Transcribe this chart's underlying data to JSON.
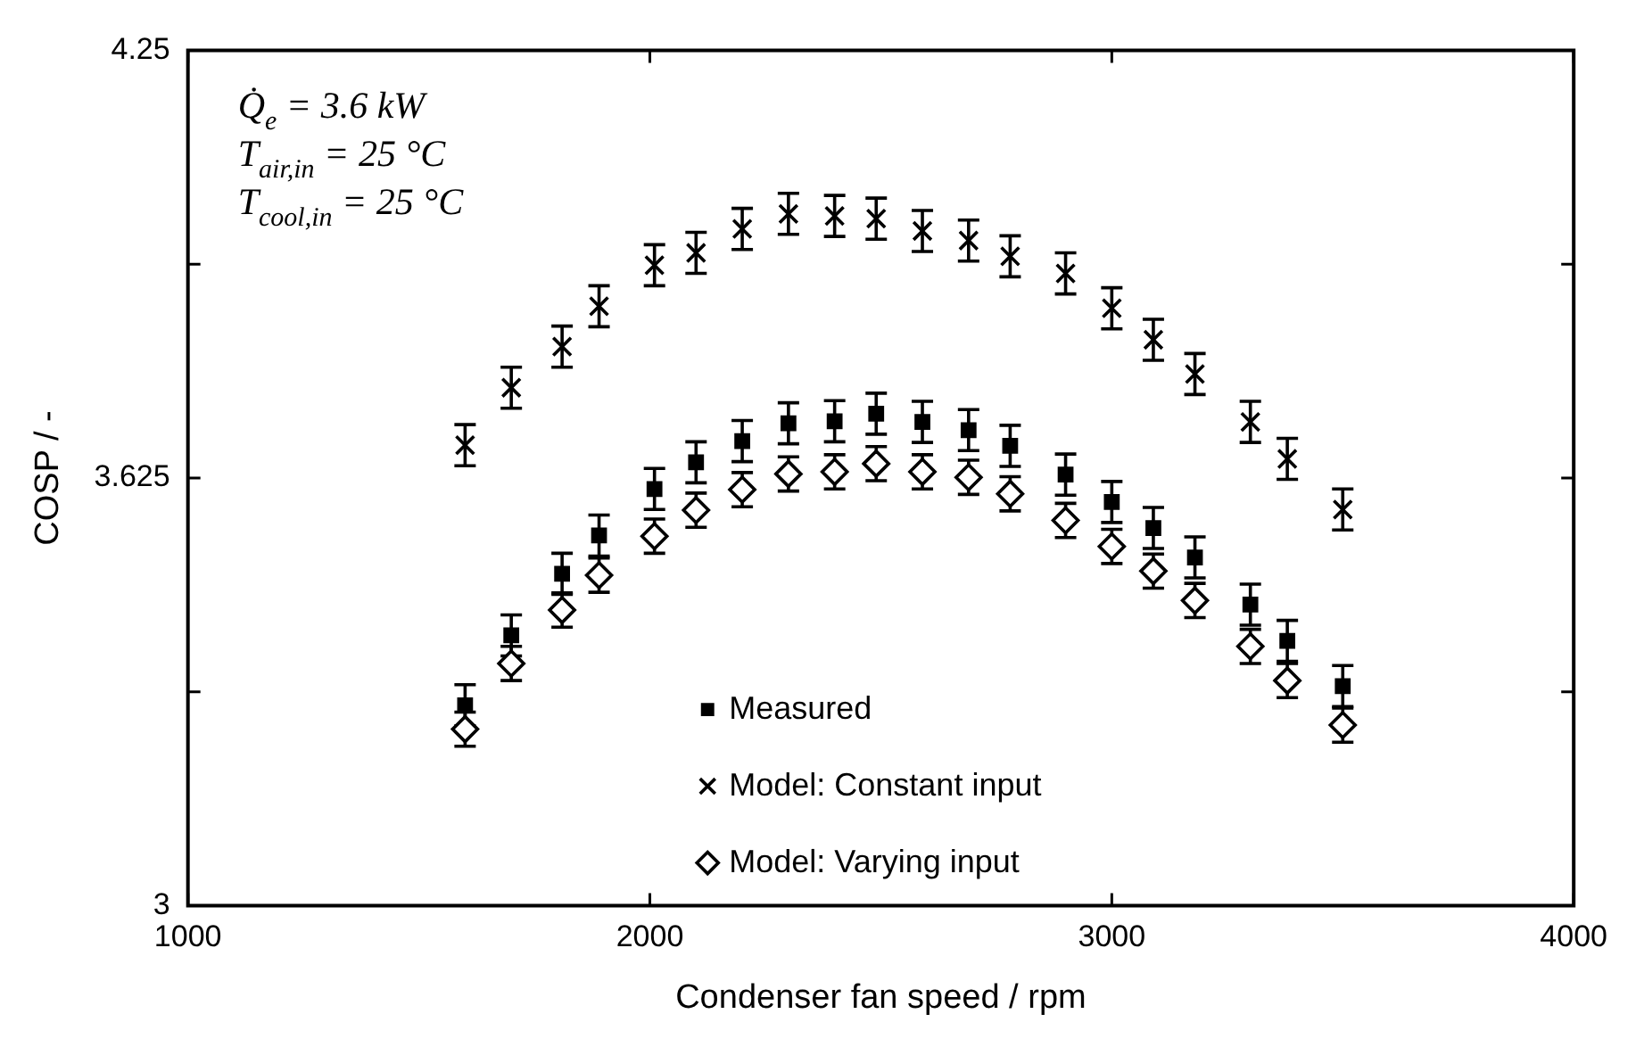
{
  "chart_data": {
    "type": "scatter",
    "xlabel": "Condenser fan speed / rpm",
    "ylabel": "COSP / -",
    "x": [
      1600,
      1700,
      1810,
      1890,
      2010,
      2100,
      2200,
      2300,
      2400,
      2490,
      2590,
      2690,
      2780,
      2900,
      3000,
      3090,
      3180,
      3300,
      3380,
      3500
    ],
    "series": [
      {
        "name": "Measured",
        "color": "#000000",
        "marker": "square",
        "values": [
          3.293,
          3.395,
          3.485,
          3.541,
          3.609,
          3.648,
          3.679,
          3.705,
          3.708,
          3.719,
          3.707,
          3.695,
          3.672,
          3.63,
          3.59,
          3.552,
          3.509,
          3.44,
          3.387,
          3.321
        ],
        "errors": [
          0.03,
          0.03,
          0.03,
          0.03,
          0.03,
          0.03,
          0.03,
          0.03,
          0.03,
          0.03,
          0.03,
          0.03,
          0.03,
          0.03,
          0.03,
          0.03,
          0.03,
          0.03,
          0.03,
          0.03
        ]
      },
      {
        "name": "Model: Constant input",
        "color": "#000000",
        "marker": "cross",
        "values": [
          3.673,
          3.757,
          3.817,
          3.876,
          3.936,
          3.954,
          3.989,
          4.011,
          4.008,
          4.004,
          3.986,
          3.972,
          3.949,
          3.924,
          3.873,
          3.827,
          3.777,
          3.707,
          3.653,
          3.579
        ],
        "errors": [
          0.03,
          0.03,
          0.03,
          0.03,
          0.03,
          0.03,
          0.03,
          0.03,
          0.03,
          0.03,
          0.03,
          0.03,
          0.03,
          0.03,
          0.03,
          0.03,
          0.03,
          0.03,
          0.03,
          0.03
        ]
      },
      {
        "name": "Model: Varying input",
        "color": "#000000",
        "marker": "diamond",
        "values": [
          3.258,
          3.354,
          3.432,
          3.483,
          3.54,
          3.578,
          3.608,
          3.631,
          3.634,
          3.646,
          3.634,
          3.626,
          3.602,
          3.563,
          3.525,
          3.489,
          3.446,
          3.379,
          3.329,
          3.264
        ],
        "errors": [
          0.025,
          0.025,
          0.025,
          0.025,
          0.025,
          0.025,
          0.025,
          0.025,
          0.025,
          0.025,
          0.025,
          0.025,
          0.025,
          0.025,
          0.025,
          0.025,
          0.025,
          0.025,
          0.025,
          0.025
        ]
      }
    ],
    "xlim": [
      1000,
      4000
    ],
    "xticks": [
      1000,
      2000,
      3000,
      4000
    ],
    "ylim": [
      3,
      4.25
    ],
    "yticks": [
      3,
      {
        "value": 3.3125,
        "label": null
      },
      3.625,
      {
        "value": 3.9375,
        "label": null
      },
      4.25
    ],
    "grid": false,
    "legend": "bottom",
    "annotations": [
      "Q̇$_{e}$ = 3.6 kW",
      "T$_{air,in}$ = 25 °C",
      "T$_{cool,in}$ = 25 °C"
    ]
  }
}
